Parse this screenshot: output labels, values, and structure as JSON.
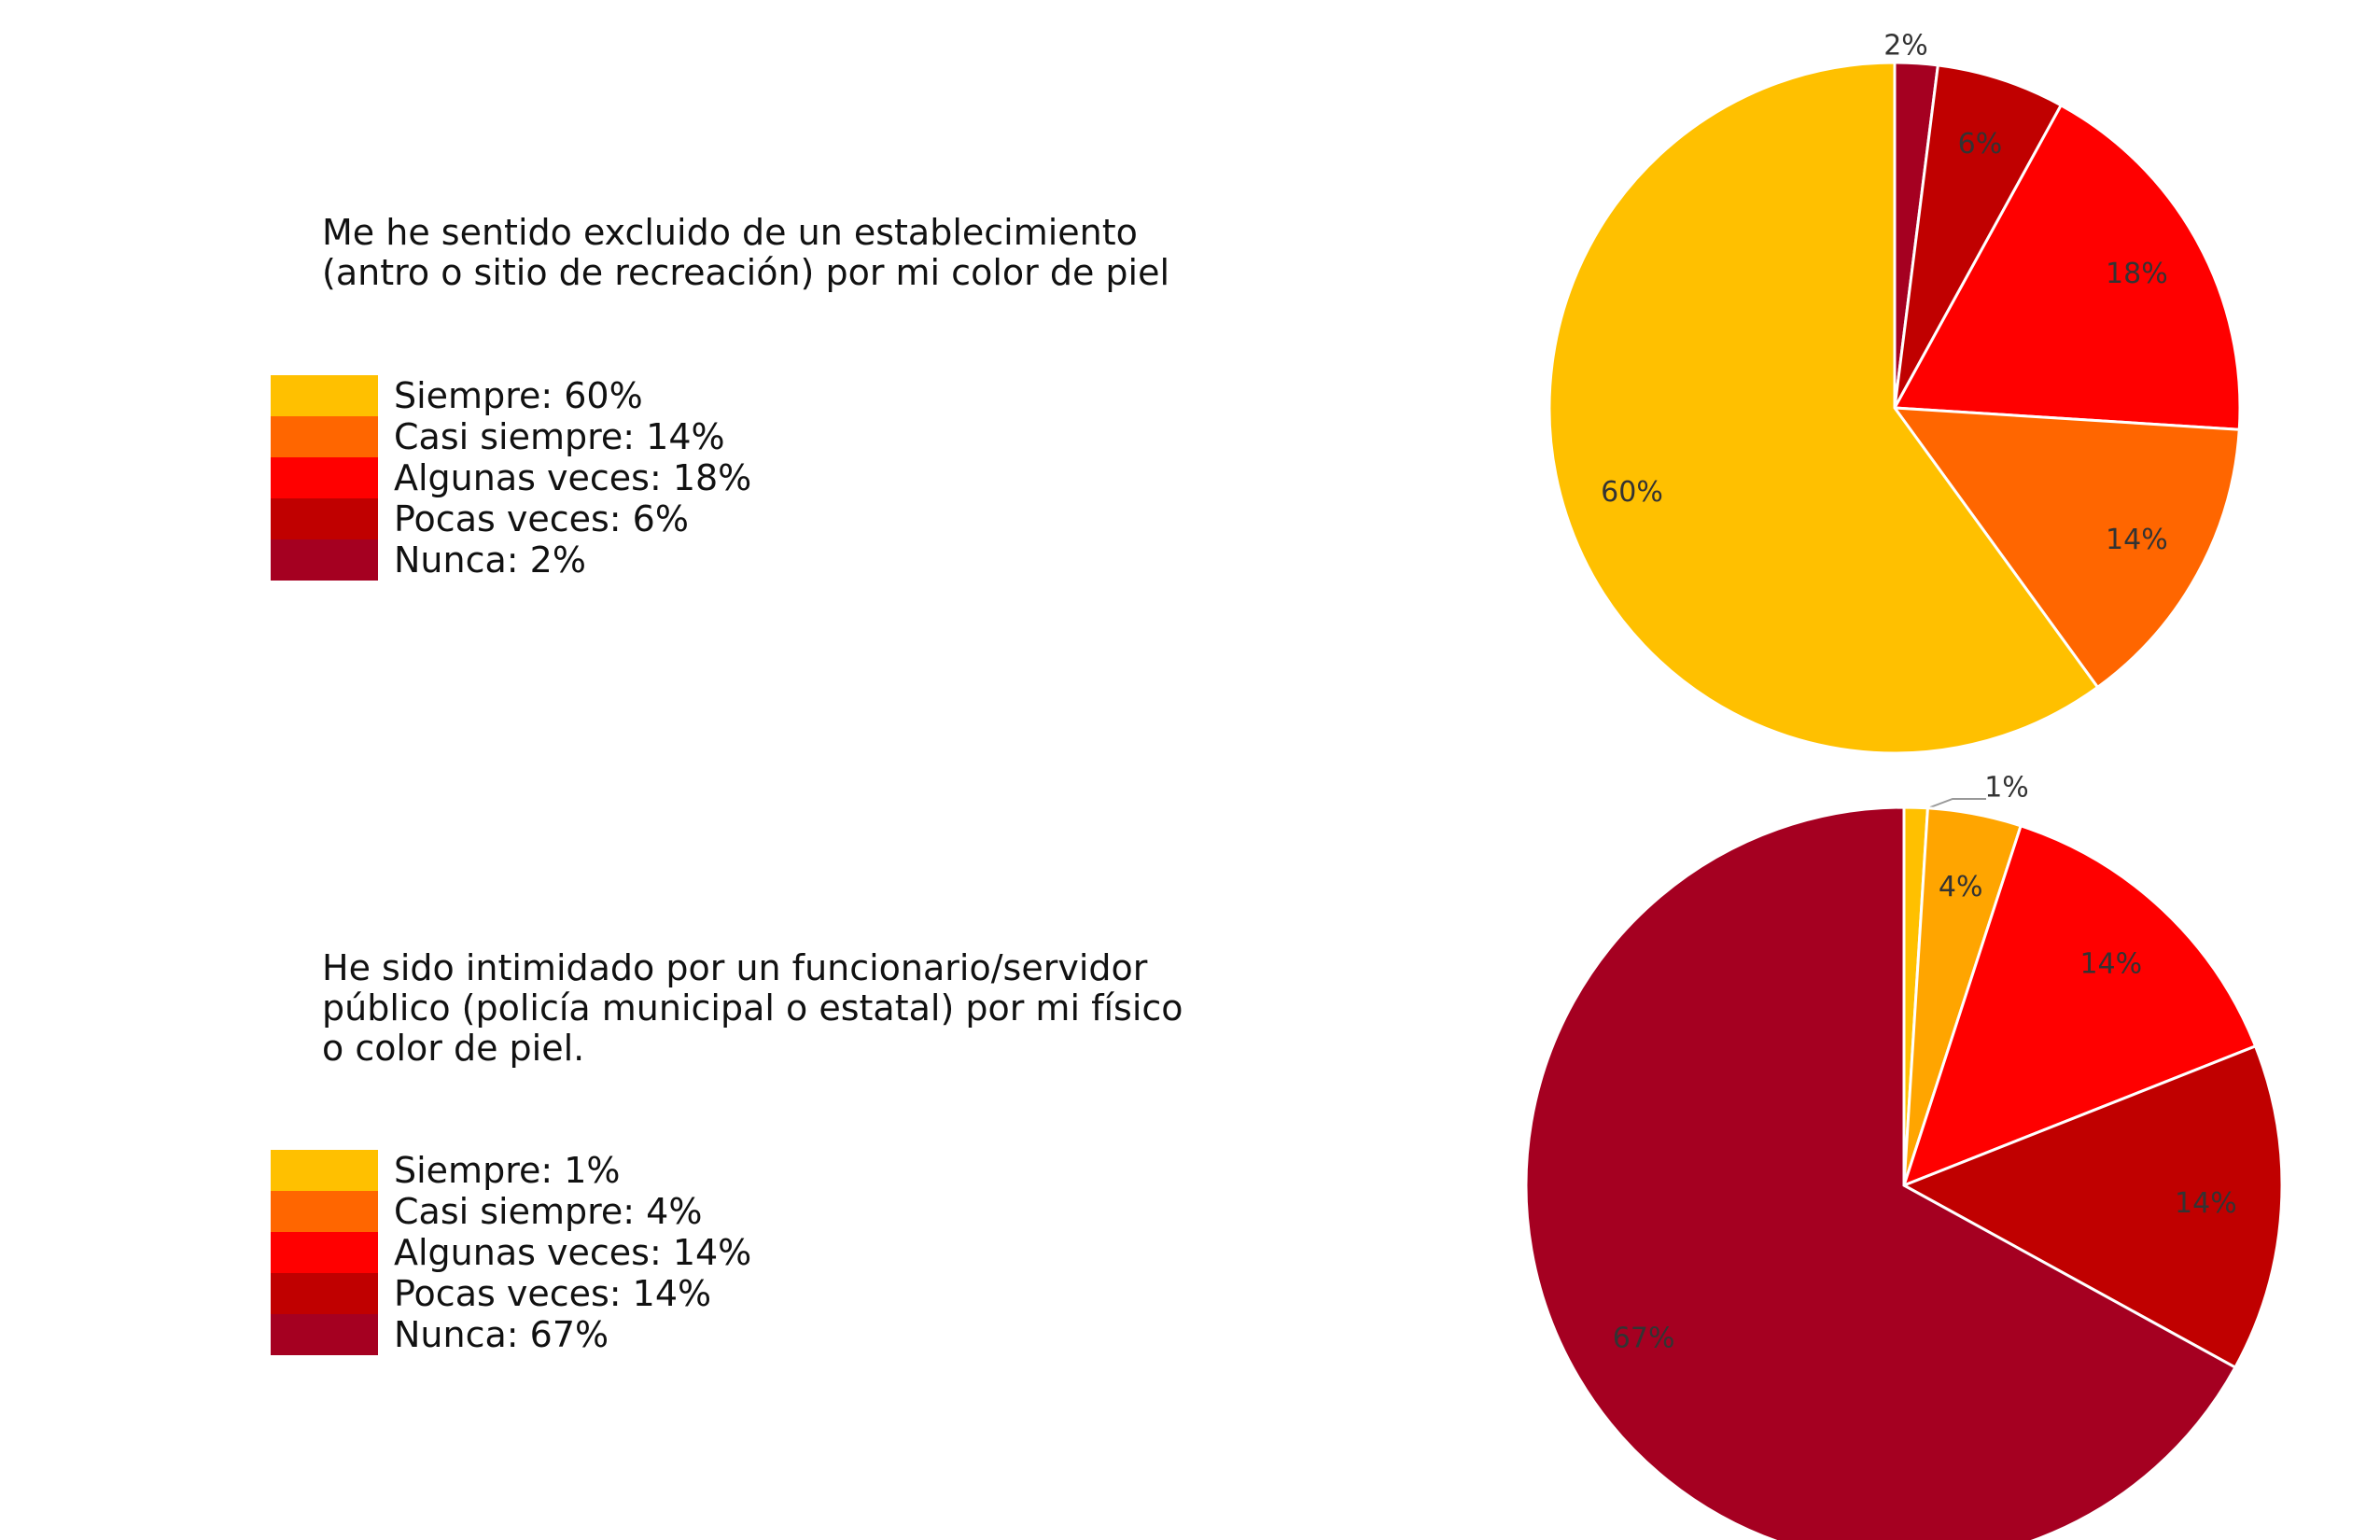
{
  "chart_data": [
    {
      "type": "pie",
      "title": "Me he sentido excluido de un establecimiento\n(antro o sitio de recreación) por mi color de piel",
      "legend_position": "left",
      "legend": [
        {
          "label": "Siempre: 60%",
          "color": "#FFC000"
        },
        {
          "label": "Casi siempre: 14%",
          "color": "#FF6600"
        },
        {
          "label": "Algunas veces: 18%",
          "color": "#FF0000"
        },
        {
          "label": "Pocas veces: 6%",
          "color": "#C00000"
        },
        {
          "label": "Nunca: 2%",
          "color": "#A50021"
        }
      ],
      "slices": [
        {
          "name": "Nunca",
          "value": 2,
          "label": "2%",
          "color": "#A50021"
        },
        {
          "name": "Pocas veces",
          "value": 6,
          "label": "6%",
          "color": "#C00000"
        },
        {
          "name": "Algunas veces",
          "value": 18,
          "label": "18%",
          "color": "#FF0000"
        },
        {
          "name": "Casi siempre",
          "value": 14,
          "label": "14%",
          "color": "#FF6600"
        },
        {
          "name": "Siempre",
          "value": 60,
          "label": "60%",
          "color": "#FFC000"
        }
      ]
    },
    {
      "type": "pie",
      "title": "He sido intimidado por un funcionario/servidor\npúblico (policía municipal o estatal) por mi físico\no color de piel.",
      "legend_position": "left",
      "legend": [
        {
          "label": "Siempre: 1%",
          "color": "#FFC000"
        },
        {
          "label": "Casi siempre: 4%",
          "color": "#FF6600"
        },
        {
          "label": "Algunas veces: 14%",
          "color": "#FF0000"
        },
        {
          "label": "Pocas veces: 14%",
          "color": "#C00000"
        },
        {
          "label": "Nunca: 67%",
          "color": "#A50021"
        }
      ],
      "slices": [
        {
          "name": "Siempre",
          "value": 1,
          "label": "1%",
          "color": "#FFC000"
        },
        {
          "name": "Casi siempre",
          "value": 4,
          "label": "4%",
          "color": "#FFA500"
        },
        {
          "name": "Algunas veces",
          "value": 14,
          "label": "14%",
          "color": "#FF0000"
        },
        {
          "name": "Pocas veces",
          "value": 14,
          "label": "14%",
          "color": "#C00000"
        },
        {
          "name": "Nunca",
          "value": 67,
          "label": "67%",
          "color": "#A50021"
        }
      ]
    }
  ]
}
